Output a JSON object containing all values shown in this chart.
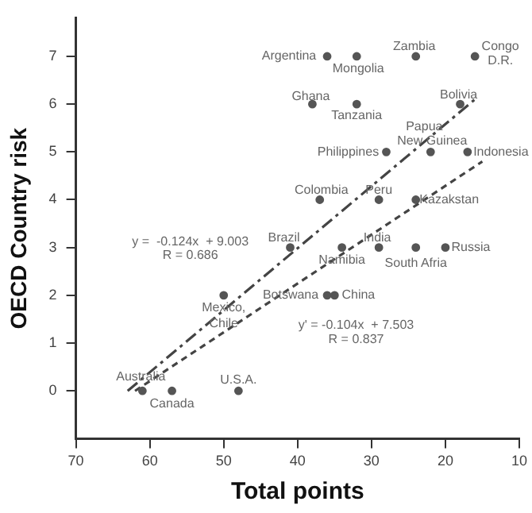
{
  "chart_data": {
    "type": "scatter",
    "xlabel": "Total points",
    "ylabel": "OECD Country risk",
    "xlim": [
      70,
      10
    ],
    "xticks": [
      70,
      60,
      50,
      40,
      30,
      20,
      10
    ],
    "ylim": [
      -1,
      7.8
    ],
    "yticks": [
      0,
      1,
      2,
      3,
      4,
      5,
      6,
      7
    ],
    "grid": false,
    "legend": false,
    "marker": "circle",
    "series": [
      {
        "type": "scatter",
        "color": "#555555",
        "x": [
          36,
          32,
          24,
          16,
          38,
          32,
          18,
          28,
          22,
          17,
          37,
          29,
          24,
          41,
          34,
          29,
          24,
          20,
          50,
          36,
          35,
          61,
          57,
          48
        ],
        "values": [
          7,
          7,
          7,
          7,
          6,
          6,
          6,
          5,
          5,
          5,
          4,
          4,
          4,
          3,
          3,
          3,
          3,
          3,
          2,
          2,
          2,
          0,
          0,
          0
        ]
      },
      {
        "type": "line",
        "color": "#444444",
        "line_style": "dashed",
        "marker": "none",
        "x": [
          63,
          16
        ],
        "values": [
          0,
          6.1
        ]
      },
      {
        "type": "line",
        "color": "#444444",
        "line_style": "dotted",
        "marker": "none",
        "x": [
          62,
          15
        ],
        "values": [
          0,
          4.8
        ]
      }
    ],
    "annotations": [
      {
        "text": "Argentina",
        "x": 36,
        "y": 7
      },
      {
        "text": "Mongolia",
        "x": 32,
        "y": 7
      },
      {
        "text": "Zambia",
        "x": 24,
        "y": 7
      },
      {
        "text": "Congo",
        "x": 16,
        "y": 7
      },
      {
        "text": "D.R.",
        "x": 16,
        "y": 7
      },
      {
        "text": "Ghana",
        "x": 38,
        "y": 6
      },
      {
        "text": "Tanzania",
        "x": 32,
        "y": 6
      },
      {
        "text": "Bolivia",
        "x": 18,
        "y": 6
      },
      {
        "text": "Papua",
        "x": 22,
        "y": 5
      },
      {
        "text": "New Guinea",
        "x": 22,
        "y": 5
      },
      {
        "text": "Philippines",
        "x": 28,
        "y": 5
      },
      {
        "text": "Indonesia",
        "x": 17,
        "y": 5
      },
      {
        "text": "Colombia",
        "x": 37,
        "y": 4
      },
      {
        "text": "Peru",
        "x": 29,
        "y": 4
      },
      {
        "text": "Kazakstan",
        "x": 24,
        "y": 4
      },
      {
        "text": "Brazil",
        "x": 41,
        "y": 3
      },
      {
        "text": "India",
        "x": 29,
        "y": 3
      },
      {
        "text": "Namibia",
        "x": 34,
        "y": 3
      },
      {
        "text": "South Afria",
        "x": 24,
        "y": 3
      },
      {
        "text": "Russia",
        "x": 20,
        "y": 3
      },
      {
        "text": "Botswana",
        "x": 36,
        "y": 2
      },
      {
        "text": "China",
        "x": 35,
        "y": 2
      },
      {
        "text": "Mexico,",
        "x": 50,
        "y": 2
      },
      {
        "text": "Chile",
        "x": 50,
        "y": 2
      },
      {
        "text": "Australia",
        "x": 61,
        "y": 0
      },
      {
        "text": "Canada",
        "x": 57,
        "y": 0
      },
      {
        "text": "U.S.A.",
        "x": 48,
        "y": 0
      },
      "y =  -0.124x  + 9.003",
      "R = 0.686",
      "y' = -0.104x  + 7.503",
      "R = 0.837"
    ]
  }
}
